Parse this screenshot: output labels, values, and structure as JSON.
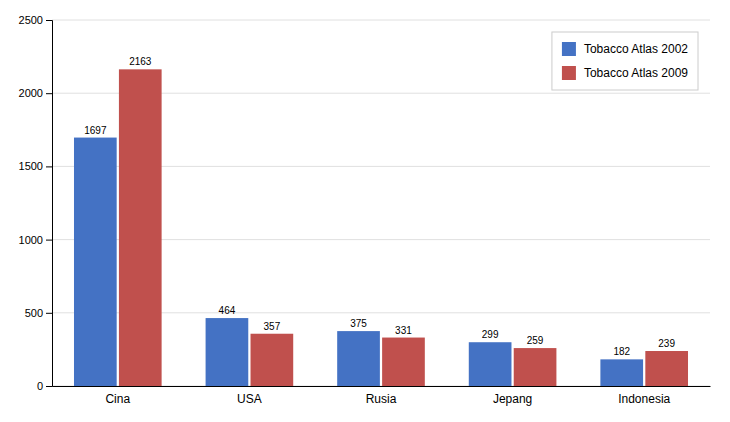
{
  "chart_data": {
    "type": "bar",
    "categories": [
      "Cina",
      "USA",
      "Rusia",
      "Jepang",
      "Indonesia"
    ],
    "series": [
      {
        "name": "Tobacco Atlas 2002",
        "color": "#4472C4",
        "values": [
          1697,
          464,
          375,
          299,
          182
        ]
      },
      {
        "name": "Tobacco Atlas 2009",
        "color": "#C0504D",
        "values": [
          2163,
          357,
          331,
          259,
          239
        ]
      }
    ],
    "ylim": [
      0,
      2500
    ],
    "yticks": [
      0,
      500,
      1000,
      1500,
      2000,
      2500
    ],
    "grid": true,
    "legend": "upper right",
    "data_labels": true
  }
}
